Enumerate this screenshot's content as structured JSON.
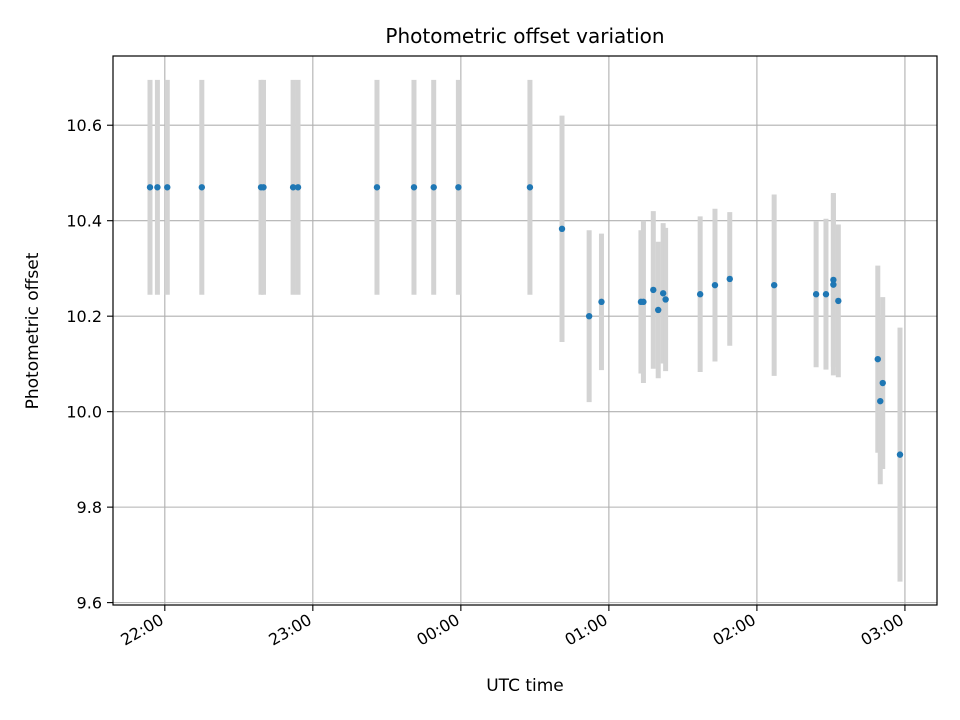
{
  "chart_data": {
    "type": "scatter",
    "title": "Photometric offset variation",
    "xlabel": "UTC time",
    "ylabel": "Photometric offset",
    "xlim": [
      "21:39",
      "03:13"
    ],
    "ylim": [
      9.595,
      10.745
    ],
    "xticks": [
      "22:00",
      "23:00",
      "00:00",
      "01:00",
      "02:00",
      "03:00"
    ],
    "yticks": [
      9.6,
      9.8,
      10.0,
      10.2,
      10.4,
      10.6
    ],
    "grid": true,
    "colors": {
      "point": "#1f77b4",
      "errorbar": "#d3d3d3",
      "grid": "#b0b0b0"
    },
    "points": [
      {
        "x": "21:54",
        "y": 10.47,
        "err": 0.225
      },
      {
        "x": "21:57",
        "y": 10.47,
        "err": 0.225
      },
      {
        "x": "22:01",
        "y": 10.47,
        "err": 0.225
      },
      {
        "x": "22:15",
        "y": 10.47,
        "err": 0.225
      },
      {
        "x": "22:39",
        "y": 10.47,
        "err": 0.225
      },
      {
        "x": "22:40",
        "y": 10.47,
        "err": 0.225
      },
      {
        "x": "22:52",
        "y": 10.47,
        "err": 0.225
      },
      {
        "x": "22:54",
        "y": 10.47,
        "err": 0.225
      },
      {
        "x": "23:26",
        "y": 10.47,
        "err": 0.225
      },
      {
        "x": "23:41",
        "y": 10.47,
        "err": 0.225
      },
      {
        "x": "23:49",
        "y": 10.47,
        "err": 0.225
      },
      {
        "x": "23:59",
        "y": 10.47,
        "err": 0.225
      },
      {
        "x": "00:28",
        "y": 10.47,
        "err": 0.225
      },
      {
        "x": "00:41",
        "y": 10.383,
        "err": 0.237
      },
      {
        "x": "00:52",
        "y": 10.2,
        "err": 0.18
      },
      {
        "x": "00:57",
        "y": 10.23,
        "err": 0.143
      },
      {
        "x": "01:13",
        "y": 10.23,
        "err": 0.15
      },
      {
        "x": "01:14",
        "y": 10.23,
        "err": 0.17
      },
      {
        "x": "01:18",
        "y": 10.255,
        "err": 0.165
      },
      {
        "x": "01:20",
        "y": 10.213,
        "err": 0.143
      },
      {
        "x": "01:22",
        "y": 10.248,
        "err": 0.147
      },
      {
        "x": "01:23",
        "y": 10.235,
        "err": 0.15
      },
      {
        "x": "01:37",
        "y": 10.246,
        "err": 0.163
      },
      {
        "x": "01:43",
        "y": 10.265,
        "err": 0.16
      },
      {
        "x": "01:49",
        "y": 10.278,
        "err": 0.14
      },
      {
        "x": "02:07",
        "y": 10.265,
        "err": 0.19
      },
      {
        "x": "02:24",
        "y": 10.246,
        "err": 0.153
      },
      {
        "x": "02:28",
        "y": 10.246,
        "err": 0.158
      },
      {
        "x": "02:31",
        "y": 10.266,
        "err": 0.19
      },
      {
        "x": "02:31",
        "y": 10.276,
        "err": 0.182
      },
      {
        "x": "02:33",
        "y": 10.232,
        "err": 0.16
      },
      {
        "x": "02:49",
        "y": 10.11,
        "err": 0.196
      },
      {
        "x": "02:50",
        "y": 10.022,
        "err": 0.174
      },
      {
        "x": "02:51",
        "y": 10.06,
        "err": 0.18
      },
      {
        "x": "02:58",
        "y": 9.91,
        "err": 0.266
      }
    ]
  }
}
